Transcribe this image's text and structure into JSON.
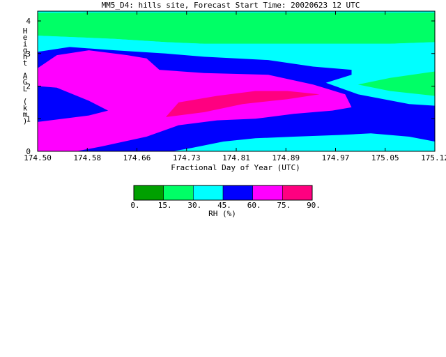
{
  "chart_data": {
    "type": "contour",
    "title": "MM5_D4: hills site,  Forecast Start Time: 20020623 12 UTC",
    "xlabel": "Fractional Day of Year (UTC)",
    "ylabel": "Height AGL (km)",
    "xlim": [
      174.5,
      175.12
    ],
    "ylim": [
      0,
      4.3
    ],
    "x_ticks": [
      "174.50",
      "174.58",
      "174.66",
      "174.73",
      "174.81",
      "174.89",
      "174.97",
      "175.05",
      "175.12"
    ],
    "y_ticks": [
      "0",
      "1",
      "2",
      "3",
      "4"
    ],
    "grid": false,
    "colorbar": {
      "label": "RH (%)",
      "position": "bottom",
      "levels": [
        "0.",
        "15.",
        "30.",
        "45.",
        "60.",
        "75.",
        "90."
      ],
      "colors": [
        "#00a000",
        "#00ff66",
        "#00ffff",
        "#0000ff",
        "#ff00ff",
        "#ff0080"
      ]
    },
    "series": [
      {
        "level": "0-15",
        "points": [
          [
            174.5,
            4.25
          ],
          [
            174.57,
            4.25
          ],
          [
            174.64,
            4.05
          ],
          [
            174.7,
            3.8
          ],
          [
            174.76,
            3.65
          ],
          [
            174.86,
            3.65
          ],
          [
            174.97,
            3.75
          ],
          [
            175.05,
            3.85
          ],
          [
            175.12,
            3.85
          ],
          [
            175.12,
            4.25
          ]
        ]
      },
      {
        "level": "15-30",
        "points": [
          [
            174.5,
            4.25
          ],
          [
            175.12,
            4.25
          ],
          [
            175.12,
            3.35
          ],
          [
            175.05,
            3.3
          ],
          [
            174.97,
            3.3
          ],
          [
            174.86,
            3.3
          ],
          [
            174.76,
            3.3
          ],
          [
            174.7,
            3.35
          ],
          [
            174.62,
            3.45
          ],
          [
            174.56,
            3.5
          ],
          [
            174.5,
            3.55
          ]
        ]
      },
      {
        "level": "30-45",
        "points": [
          [
            174.5,
            3.55
          ],
          [
            174.56,
            3.5
          ],
          [
            174.62,
            3.45
          ],
          [
            174.7,
            3.35
          ],
          [
            174.76,
            3.3
          ],
          [
            174.86,
            3.3
          ],
          [
            174.97,
            3.3
          ],
          [
            175.05,
            3.3
          ],
          [
            175.12,
            3.35
          ],
          [
            175.12,
            0.3
          ],
          [
            174.97,
            0.3
          ],
          [
            174.86,
            0.3
          ],
          [
            174.7,
            0.25
          ],
          [
            174.6,
            0.1
          ],
          [
            174.55,
            0
          ],
          [
            174.5,
            0
          ]
        ]
      },
      {
        "level": "15-30",
        "points": [
          [
            175.0,
            2.05
          ],
          [
            175.05,
            2.25
          ],
          [
            175.12,
            2.45
          ],
          [
            175.12,
            1.7
          ],
          [
            175.05,
            1.85
          ]
        ]
      },
      {
        "level": "45-60",
        "points": [
          [
            174.5,
            3.05
          ],
          [
            174.55,
            3.2
          ],
          [
            174.62,
            3.1
          ],
          [
            174.7,
            3.0
          ],
          [
            174.76,
            2.9
          ],
          [
            174.86,
            2.8
          ],
          [
            174.93,
            2.6
          ],
          [
            174.99,
            2.5
          ],
          [
            174.99,
            2.35
          ],
          [
            174.95,
            2.1
          ],
          [
            175.0,
            1.75
          ],
          [
            175.08,
            1.45
          ],
          [
            175.12,
            1.4
          ],
          [
            175.12,
            0.3
          ],
          [
            175.08,
            0.45
          ],
          [
            175.02,
            0.55
          ],
          [
            174.97,
            0.5
          ],
          [
            174.9,
            0.45
          ],
          [
            174.84,
            0.4
          ],
          [
            174.79,
            0.3
          ],
          [
            174.74,
            0.1
          ],
          [
            174.71,
            0
          ],
          [
            174.59,
            0
          ],
          [
            174.55,
            0
          ],
          [
            174.5,
            0
          ]
        ]
      },
      {
        "level": "60-75",
        "points": [
          [
            174.5,
            2.55
          ],
          [
            174.53,
            2.95
          ],
          [
            174.58,
            3.1
          ],
          [
            174.64,
            2.95
          ],
          [
            174.67,
            2.85
          ],
          [
            174.69,
            2.5
          ],
          [
            174.76,
            2.4
          ],
          [
            174.86,
            2.35
          ],
          [
            174.93,
            2.05
          ],
          [
            174.98,
            1.75
          ],
          [
            174.99,
            1.35
          ],
          [
            174.96,
            1.25
          ],
          [
            174.9,
            1.15
          ],
          [
            174.84,
            1.0
          ],
          [
            174.78,
            0.95
          ],
          [
            174.72,
            0.8
          ],
          [
            174.67,
            0.45
          ],
          [
            174.6,
            0.15
          ],
          [
            174.56,
            0
          ],
          [
            174.5,
            0
          ],
          [
            174.5,
            0.9
          ],
          [
            174.54,
            1.0
          ],
          [
            174.58,
            1.1
          ],
          [
            174.61,
            1.25
          ],
          [
            174.58,
            1.55
          ],
          [
            174.53,
            1.95
          ],
          [
            174.5,
            2.0
          ]
        ]
      },
      {
        "level": "75-90",
        "points": [
          [
            174.7,
            1.05
          ],
          [
            174.72,
            1.5
          ],
          [
            174.78,
            1.7
          ],
          [
            174.84,
            1.85
          ],
          [
            174.89,
            1.85
          ],
          [
            174.94,
            1.75
          ],
          [
            174.89,
            1.6
          ],
          [
            174.82,
            1.45
          ],
          [
            174.76,
            1.2
          ]
        ]
      }
    ]
  }
}
